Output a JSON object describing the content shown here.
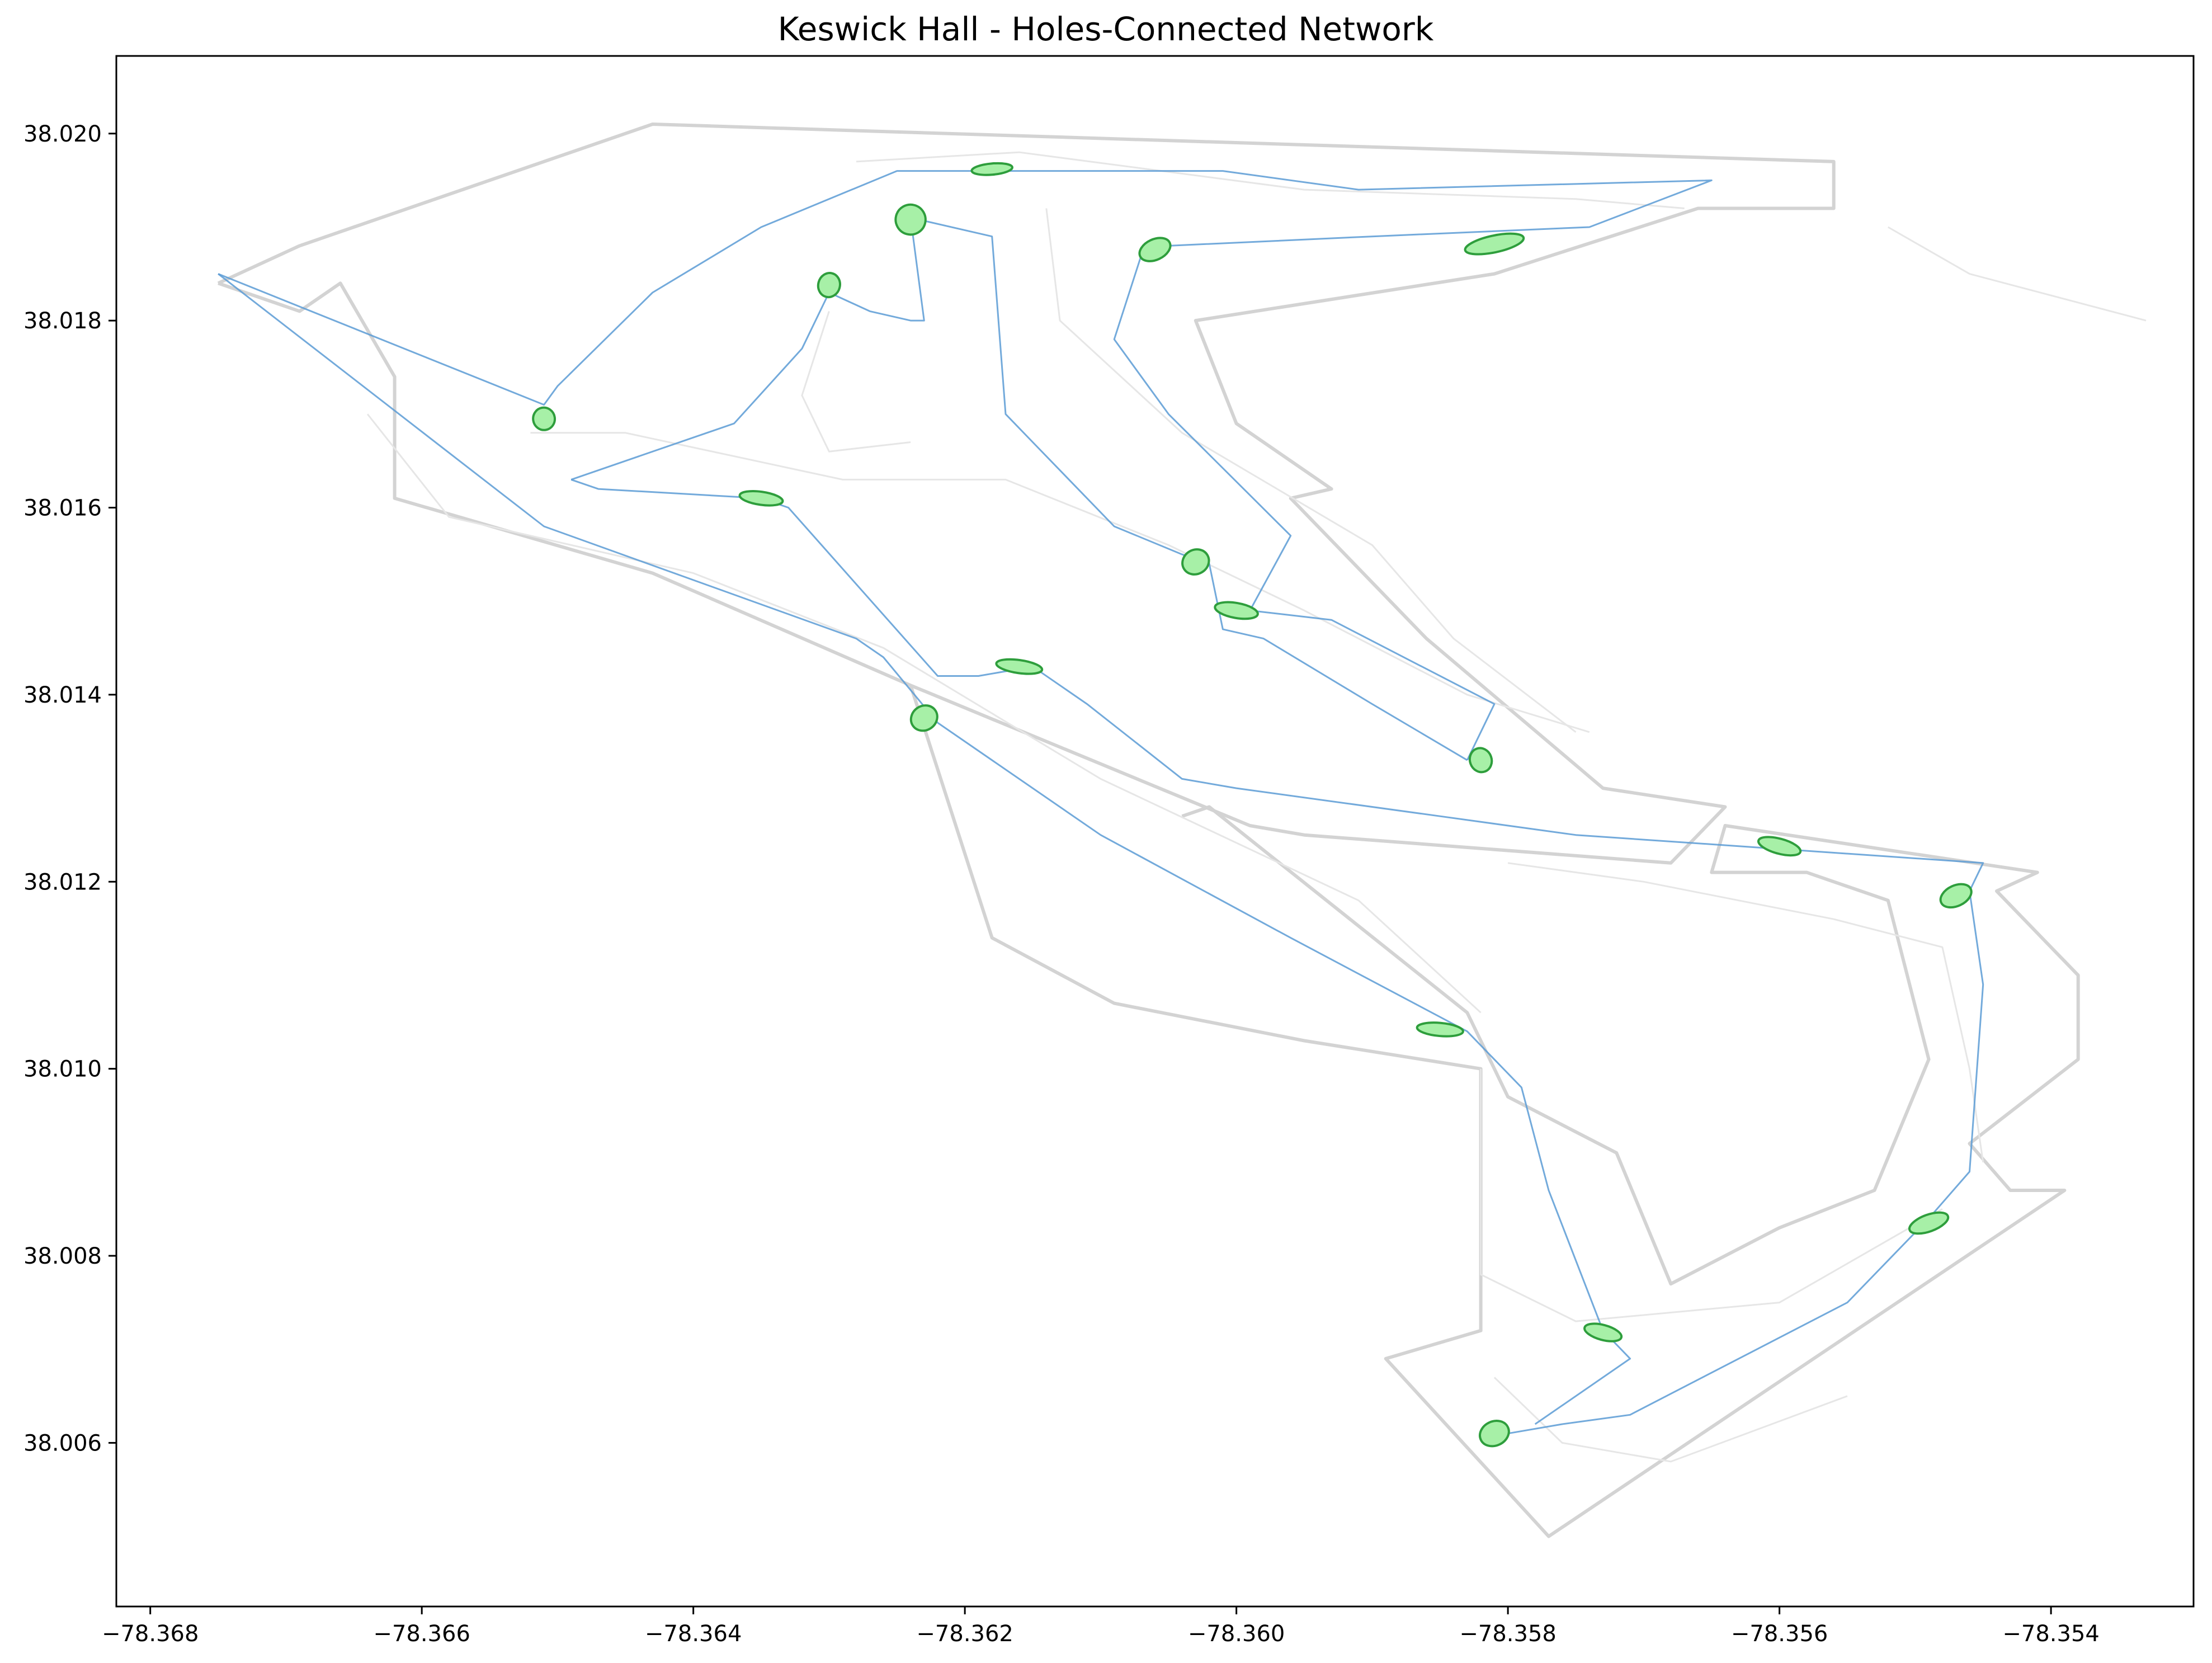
{
  "title": "Keswick Hall - Holes-Connected Network",
  "chart_data": {
    "type": "map",
    "title": "Keswick Hall - Holes-Connected Network",
    "xlim": [
      -78.36825,
      -78.35295
    ],
    "ylim": [
      38.00425,
      38.02083
    ],
    "x_ticks": [
      -78.368,
      -78.366,
      -78.364,
      -78.362,
      -78.36,
      -78.358,
      -78.356,
      -78.354
    ],
    "x_tick_labels": [
      "−78.368",
      "−78.366",
      "−78.364",
      "−78.362",
      "−78.360",
      "−78.358",
      "−78.356",
      "−78.354"
    ],
    "y_ticks": [
      38.006,
      38.008,
      38.01,
      38.012,
      38.014,
      38.016,
      38.018,
      38.02
    ],
    "y_tick_labels": [
      "38.006",
      "38.008",
      "38.010",
      "38.012",
      "38.014",
      "38.016",
      "38.018",
      "38.020"
    ],
    "colors": {
      "boundary": "#d3d3d3",
      "paths": "#e6e6e6",
      "route": "#5b9bd5",
      "green_fill": "#a7f0a7",
      "green_edge": "#2e9e3c"
    },
    "boundary": [
      [
        -78.3675,
        38.0184
      ],
      [
        -78.3669,
        38.0181
      ],
      [
        -78.3666,
        38.0184
      ],
      [
        -78.3662,
        38.0174
      ],
      [
        -78.3662,
        38.0161
      ],
      [
        -78.3643,
        38.0153
      ],
      [
        -78.3624,
        38.0141
      ],
      [
        -78.3599,
        38.0126
      ],
      [
        -78.3595,
        38.0125
      ],
      [
        -78.3568,
        38.0122
      ],
      [
        -78.3564,
        38.0128
      ],
      [
        -78.3573,
        38.013
      ],
      [
        -78.3586,
        38.0146
      ],
      [
        -78.3596,
        38.0161
      ],
      [
        -78.3593,
        38.0162
      ],
      [
        -78.36,
        38.0169
      ],
      [
        -78.3603,
        38.018
      ],
      [
        -78.3581,
        38.0185
      ],
      [
        -78.3566,
        38.0192
      ],
      [
        -78.3556,
        38.0192
      ],
      [
        -78.3556,
        38.0197
      ],
      [
        -78.3643,
        38.0201
      ],
      [
        -78.3669,
        38.0188
      ],
      [
        -78.3675,
        38.0184
      ]
    ],
    "boundary_south": [
      [
        -78.3604,
        38.0127
      ],
      [
        -78.3602,
        38.0128
      ],
      [
        -78.3583,
        38.0106
      ],
      [
        -78.358,
        38.0097
      ],
      [
        -78.3572,
        38.0091
      ],
      [
        -78.3568,
        38.0077
      ],
      [
        -78.356,
        38.0083
      ],
      [
        -78.3553,
        38.0087
      ],
      [
        -78.3549,
        38.0101
      ],
      [
        -78.3552,
        38.0118
      ],
      [
        -78.3558,
        38.0121
      ],
      [
        -78.3565,
        38.0121
      ],
      [
        -78.3564,
        38.0126
      ],
      [
        -78.3541,
        38.0121
      ],
      [
        -78.3544,
        38.0119
      ],
      [
        -78.3538,
        38.011
      ],
      [
        -78.3538,
        38.0101
      ],
      [
        -78.3546,
        38.0092
      ],
      [
        -78.3543,
        38.0087
      ],
      [
        -78.3539,
        38.0087
      ],
      [
        -78.3577,
        38.005
      ],
      [
        -78.3589,
        38.0069
      ],
      [
        -78.3582,
        38.0072
      ],
      [
        -78.3582,
        38.01
      ],
      [
        -78.3595,
        38.0103
      ],
      [
        -78.3609,
        38.0107
      ],
      [
        -78.3618,
        38.0114
      ],
      [
        -78.3624,
        38.0141
      ]
    ],
    "paths": [
      [
        [
          -78.3652,
          38.0168
        ],
        [
          -78.3645,
          38.0168
        ],
        [
          -78.3629,
          38.0163
        ],
        [
          -78.3617,
          38.0163
        ],
        [
          -78.3605,
          38.0156
        ],
        [
          -78.3595,
          38.0149
        ],
        [
          -78.3583,
          38.014
        ],
        [
          -78.3574,
          38.0136
        ]
      ],
      [
        [
          -78.3664,
          38.017
        ],
        [
          -78.3658,
          38.0159
        ],
        [
          -78.364,
          38.0153
        ],
        [
          -78.3626,
          38.0145
        ],
        [
          -78.361,
          38.0131
        ],
        [
          -78.3591,
          38.0118
        ],
        [
          -78.3582,
          38.0106
        ]
      ],
      [
        [
          -78.363,
          38.0181
        ],
        [
          -78.3632,
          38.0172
        ],
        [
          -78.363,
          38.0166
        ],
        [
          -78.3624,
          38.0167
        ]
      ],
      [
        [
          -78.3614,
          38.0192
        ],
        [
          -78.3613,
          38.018
        ],
        [
          -78.3604,
          38.0168
        ],
        [
          -78.359,
          38.0156
        ],
        [
          -78.3584,
          38.0146
        ],
        [
          -78.3575,
          38.0136
        ]
      ],
      [
        [
          -78.3628,
          38.0197
        ],
        [
          -78.3616,
          38.0198
        ],
        [
          -78.3595,
          38.0194
        ],
        [
          -78.3575,
          38.0193
        ],
        [
          -78.3567,
          38.0192
        ]
      ],
      [
        [
          -78.3552,
          38.019
        ],
        [
          -78.3546,
          38.0185
        ],
        [
          -78.3533,
          38.018
        ]
      ],
      [
        [
          -78.358,
          38.0122
        ],
        [
          -78.357,
          38.012
        ],
        [
          -78.3556,
          38.0116
        ],
        [
          -78.3548,
          38.0113
        ],
        [
          -78.3546,
          38.01
        ],
        [
          -78.3545,
          38.009
        ]
      ],
      [
        [
          -78.3582,
          38.01
        ],
        [
          -78.3582,
          38.0078
        ],
        [
          -78.3575,
          38.0073
        ],
        [
          -78.356,
          38.0075
        ],
        [
          -78.3548,
          38.0085
        ]
      ],
      [
        [
          -78.3581,
          38.0067
        ],
        [
          -78.3576,
          38.006
        ],
        [
          -78.3568,
          38.0058
        ],
        [
          -78.3555,
          38.0065
        ]
      ]
    ],
    "route_north": [
      [
        -78.3675,
        38.0185
      ],
      [
        -78.3651,
        38.0171
      ],
      [
        -78.365,
        38.0173
      ],
      [
        -78.3643,
        38.0183
      ],
      [
        -78.3635,
        38.019
      ],
      [
        -78.3625,
        38.0196
      ],
      [
        -78.3618,
        38.0196
      ],
      [
        -78.3601,
        38.0196
      ],
      [
        -78.3591,
        38.0194
      ],
      [
        -78.3565,
        38.0195
      ],
      [
        -78.3574,
        38.019
      ],
      [
        -78.359,
        38.0189
      ],
      [
        -78.3605,
        38.0188
      ],
      [
        -78.3607,
        38.0187
      ],
      [
        -78.3609,
        38.0178
      ],
      [
        -78.3605,
        38.017
      ],
      [
        -78.3596,
        38.0157
      ],
      [
        -78.3599,
        38.0149
      ],
      [
        -78.3599,
        38.0149
      ],
      [
        -78.3593,
        38.0148
      ],
      [
        -78.3581,
        38.0139
      ],
      [
        -78.3582,
        38.0136
      ],
      [
        -78.3583,
        38.0133
      ]
    ],
    "route_middle": [
      [
        -78.3649,
        38.0163
      ],
      [
        -78.3647,
        38.0162
      ],
      [
        -78.3635,
        38.0161
      ],
      [
        -78.3633,
        38.016
      ],
      [
        -78.3622,
        38.0142
      ],
      [
        -78.3619,
        38.0142
      ],
      [
        -78.3615,
        38.0143
      ],
      [
        -78.3611,
        38.0139
      ],
      [
        -78.3604,
        38.0131
      ],
      [
        -78.36,
        38.013
      ],
      [
        -78.3585,
        38.0127
      ],
      [
        -78.3575,
        38.0125
      ],
      [
        -78.3565,
        38.0124
      ],
      [
        -78.3545,
        38.0122
      ],
      [
        -78.3546,
        38.0119
      ],
      [
        -78.3545,
        38.0109
      ],
      [
        -78.3546,
        38.0089
      ],
      [
        -78.3549,
        38.0084
      ],
      [
        -78.3555,
        38.0075
      ],
      [
        -78.3571,
        38.0063
      ],
      [
        -78.3576,
        38.0062
      ],
      [
        -78.358,
        38.0061
      ]
    ],
    "route_south": [
      [
        -78.3675,
        38.0185
      ],
      [
        -78.3651,
        38.0158
      ],
      [
        -78.3628,
        38.0146
      ],
      [
        -78.3626,
        38.0144
      ],
      [
        -78.3622,
        38.0137
      ],
      [
        -78.361,
        38.0125
      ],
      [
        -78.3596,
        38.0114
      ],
      [
        -78.3583,
        38.0104
      ],
      [
        -78.3579,
        38.0098
      ],
      [
        -78.3577,
        38.0087
      ],
      [
        -78.3573,
        38.0072
      ],
      [
        -78.3571,
        38.0069
      ],
      [
        -78.3578,
        38.0062
      ]
    ],
    "route_west": [
      [
        -78.3649,
        38.0163
      ],
      [
        -78.3637,
        38.0169
      ],
      [
        -78.3632,
        38.0177
      ],
      [
        -78.363,
        38.0183
      ],
      [
        -78.3627,
        38.0181
      ],
      [
        -78.3624,
        38.018
      ],
      [
        -78.3623,
        38.018
      ],
      [
        -78.3624,
        38.0191
      ],
      [
        -78.3618,
        38.0189
      ],
      [
        -78.3617,
        38.017
      ],
      [
        -78.3615,
        38.0167
      ],
      [
        -78.3609,
        38.0158
      ],
      [
        -78.3604,
        38.0155
      ],
      [
        -78.3602,
        38.0154
      ],
      [
        -78.3601,
        38.0147
      ],
      [
        -78.3598,
        38.0146
      ],
      [
        -78.359,
        38.0139
      ],
      [
        -78.3583,
        38.0133
      ]
    ],
    "greens": [
      {
        "x": -78.3651,
        "y": 38.01695,
        "rx": 8e-05,
        "ry": 0.00012,
        "rot": -10
      },
      {
        "x": -78.363,
        "y": 38.01838,
        "rx": 8e-05,
        "ry": 0.00013,
        "rot": 15
      },
      {
        "x": -78.3624,
        "y": 38.01908,
        "rx": 0.00011,
        "ry": 0.00016,
        "rot": -30
      },
      {
        "x": -78.3618,
        "y": 38.01962,
        "rx": 0.00015,
        "ry": 6e-05,
        "rot": -5
      },
      {
        "x": -78.3606,
        "y": 38.01876,
        "rx": 0.00012,
        "ry": 0.00011,
        "rot": -25
      },
      {
        "x": -78.3581,
        "y": 38.01882,
        "rx": 0.00022,
        "ry": 9e-05,
        "rot": -12
      },
      {
        "x": -78.3635,
        "y": 38.0161,
        "rx": 0.00016,
        "ry": 7e-05,
        "rot": 8
      },
      {
        "x": -78.3603,
        "y": 38.01542,
        "rx": 0.0001,
        "ry": 0.00013,
        "rot": -30
      },
      {
        "x": -78.36,
        "y": 38.0149,
        "rx": 0.00016,
        "ry": 8e-05,
        "rot": 10
      },
      {
        "x": -78.3616,
        "y": 38.0143,
        "rx": 0.00017,
        "ry": 7e-05,
        "rot": 8
      },
      {
        "x": -78.3623,
        "y": 38.01375,
        "rx": 0.0001,
        "ry": 0.00013,
        "rot": -35
      },
      {
        "x": -78.3582,
        "y": 38.0133,
        "rx": 8e-05,
        "ry": 0.00013,
        "rot": -20
      },
      {
        "x": -78.356,
        "y": 38.01238,
        "rx": 0.00016,
        "ry": 8e-05,
        "rot": 15
      },
      {
        "x": -78.3547,
        "y": 38.01185,
        "rx": 0.00012,
        "ry": 0.00011,
        "rot": -25
      },
      {
        "x": -78.3585,
        "y": 38.01042,
        "rx": 0.00017,
        "ry": 7e-05,
        "rot": 5
      },
      {
        "x": -78.3549,
        "y": 38.00835,
        "rx": 0.00015,
        "ry": 9e-05,
        "rot": -20
      },
      {
        "x": -78.3573,
        "y": 38.00718,
        "rx": 0.00014,
        "ry": 8e-05,
        "rot": 15
      },
      {
        "x": -78.3581,
        "y": 38.0061,
        "rx": 0.00011,
        "ry": 0.00013,
        "rot": -25
      }
    ]
  }
}
